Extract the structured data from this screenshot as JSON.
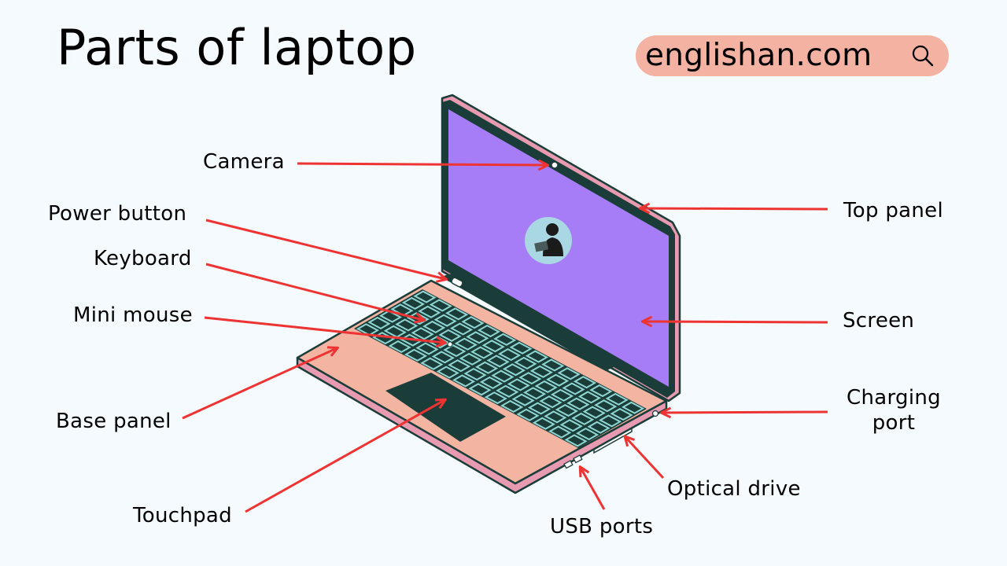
{
  "title": "Parts of laptop",
  "site": {
    "name": "englishan.com",
    "icon": "search-icon"
  },
  "labels": {
    "camera": "Camera",
    "power_button": "Power button",
    "keyboard": "Keyboard",
    "mini_mouse": "Mini mouse",
    "base_panel": "Base panel",
    "touchpad": "Touchpad",
    "usb_ports": "USB ports",
    "optical_drive": "Optical drive",
    "charging_port_line1": "Charging",
    "charging_port_line2": "port",
    "screen": "Screen",
    "top_panel": "Top panel"
  },
  "colors": {
    "background": "#f4fafd",
    "pill": "#f4b2a2",
    "screen": "#a77cf7",
    "bezel": "#1b3d3a",
    "lid_shell": "#e89bb0",
    "base_top": "#f4b4a2",
    "base_side": "#e89bb0",
    "keys": "#8fd6d3",
    "touchpad": "#1b3d3a",
    "arrow": "#ee3333"
  }
}
